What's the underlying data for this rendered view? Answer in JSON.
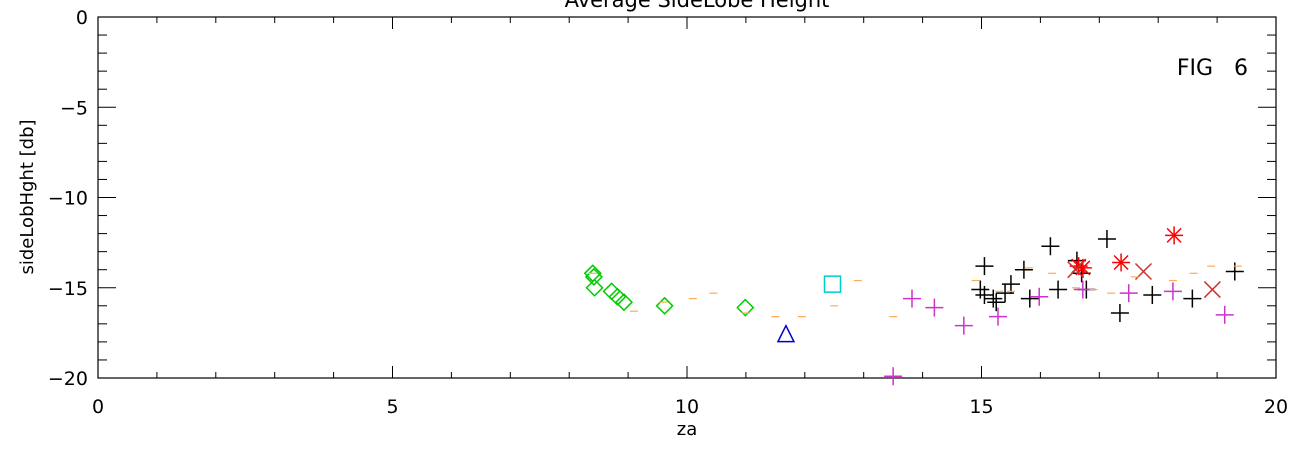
{
  "chart_data": {
    "type": "scatter",
    "title": "Average SideLobe Height",
    "xlabel": "za",
    "ylabel": "sideLobHght [db]",
    "annotation": "FIG   6",
    "xlim": [
      0,
      20
    ],
    "ylim": [
      -20,
      0
    ],
    "x_ticks": [
      0,
      5,
      10,
      15,
      20
    ],
    "y_ticks": [
      0,
      -5,
      -10,
      -15,
      -20
    ],
    "grid": false,
    "series": [
      {
        "marker": "diamond",
        "color": "#00cc00",
        "points": [
          [
            8.4,
            -14.2
          ],
          [
            8.42,
            -14.4
          ],
          [
            8.43,
            -15.0
          ],
          [
            8.72,
            -15.2
          ],
          [
            8.82,
            -15.5
          ],
          [
            8.93,
            -15.8
          ],
          [
            9.62,
            -16.0
          ],
          [
            10.99,
            -16.1
          ]
        ]
      },
      {
        "marker": "triangle",
        "color": "#0000cc",
        "points": [
          [
            11.68,
            -17.6
          ]
        ]
      },
      {
        "marker": "square",
        "color": "#00cccc",
        "points": [
          [
            12.47,
            -14.8
          ]
        ]
      },
      {
        "marker": "plus",
        "color": "#000000",
        "points": [
          [
            14.98,
            -15.1
          ],
          [
            15.05,
            -15.4
          ],
          [
            15.05,
            -13.8
          ],
          [
            15.2,
            -15.6
          ],
          [
            15.25,
            -15.8
          ],
          [
            15.4,
            -15.3
          ],
          [
            15.5,
            -14.8
          ],
          [
            15.72,
            -14.0
          ],
          [
            15.82,
            -15.6
          ],
          [
            16.17,
            -12.7
          ],
          [
            16.3,
            -15.1
          ],
          [
            16.62,
            -13.5
          ],
          [
            16.7,
            -14.2
          ],
          [
            16.78,
            -15.1
          ],
          [
            17.13,
            -12.3
          ],
          [
            17.35,
            -16.4
          ],
          [
            17.9,
            -15.4
          ],
          [
            18.58,
            -15.6
          ],
          [
            19.3,
            -14.1
          ]
        ]
      },
      {
        "marker": "plus",
        "color": "#cc33cc",
        "points": [
          [
            13.5,
            -19.9
          ],
          [
            13.82,
            -15.6
          ],
          [
            14.2,
            -16.1
          ],
          [
            14.7,
            -17.1
          ],
          [
            15.28,
            -16.6
          ],
          [
            15.98,
            -15.5
          ],
          [
            16.72,
            -15.1
          ],
          [
            17.5,
            -15.3
          ],
          [
            18.25,
            -15.2
          ],
          [
            19.13,
            -16.5
          ]
        ]
      },
      {
        "marker": "asterisk",
        "color": "#ff0000",
        "points": [
          [
            16.65,
            -13.8
          ],
          [
            16.72,
            -13.9
          ],
          [
            17.37,
            -13.6
          ],
          [
            18.27,
            -12.1
          ]
        ]
      },
      {
        "marker": "x",
        "color": "#cc3333",
        "points": [
          [
            16.6,
            -14.0
          ],
          [
            17.75,
            -14.1
          ],
          [
            18.92,
            -15.1
          ]
        ]
      },
      {
        "marker": "dash",
        "color": "#ffaa55",
        "points": [
          [
            8.4,
            -14.2
          ],
          [
            9.1,
            -16.3
          ],
          [
            9.6,
            -15.8
          ],
          [
            10.1,
            -15.6
          ],
          [
            10.45,
            -15.3
          ],
          [
            11.0,
            -16.4
          ],
          [
            11.5,
            -16.6
          ],
          [
            11.95,
            -16.6
          ],
          [
            12.5,
            -16.0
          ],
          [
            12.9,
            -14.6
          ],
          [
            13.5,
            -16.6
          ],
          [
            14.9,
            -14.6
          ],
          [
            15.3,
            -15.2
          ],
          [
            15.5,
            -15.2
          ],
          [
            15.8,
            -13.9
          ],
          [
            16.2,
            -14.2
          ],
          [
            16.6,
            -15.0
          ],
          [
            16.9,
            -15.1
          ],
          [
            17.2,
            -15.3
          ],
          [
            17.6,
            -14.4
          ],
          [
            18.25,
            -14.6
          ],
          [
            18.6,
            -14.2
          ],
          [
            18.9,
            -13.8
          ],
          [
            19.35,
            -13.8
          ]
        ]
      }
    ]
  }
}
